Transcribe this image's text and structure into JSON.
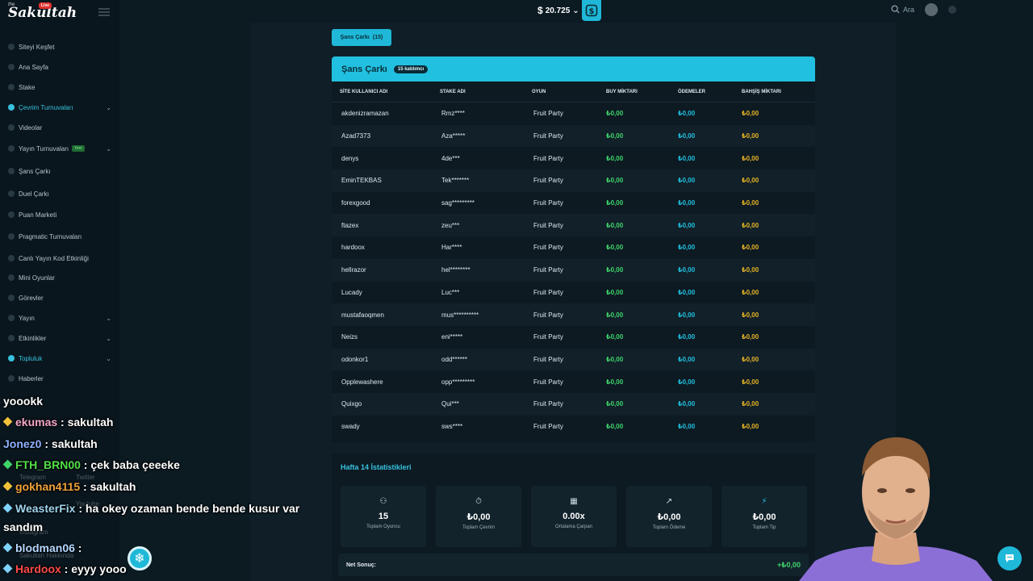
{
  "brand": {
    "pre": "the",
    "name": "Sakultah",
    "badge": "Live"
  },
  "sidebar": {
    "items": [
      {
        "label": "Siteyi Keşfet"
      },
      {
        "label": "Ana Sayfa"
      },
      {
        "label": "Stake"
      },
      {
        "label": "Çevrim Turnuvaları",
        "active": true,
        "chevron": "⌄"
      },
      {
        "label": "Videolar"
      },
      {
        "label": "Yayın Turnuvaları",
        "badge": "Yeni",
        "chevron": "⌄"
      },
      {
        "label": "Şans Çarkı"
      },
      {
        "label": "Duel Çarkı"
      },
      {
        "label": "Puan Marketi"
      },
      {
        "label": "Pragmatic Turnuvaları"
      },
      {
        "label": "Canlı Yayın Kod Etkinliği"
      },
      {
        "label": "Mini Oyunlar"
      },
      {
        "label": "Görevler"
      },
      {
        "label": "Yayın",
        "chevron": "⌄"
      },
      {
        "label": "Etkinlikler",
        "chevron": "⌄"
      },
      {
        "label": "Topluluk",
        "active": true,
        "chevron": "⌄"
      },
      {
        "label": "Haberler"
      }
    ],
    "faded": [
      "Telegram",
      "Twitter",
      "Youtube",
      "Instagram",
      "Sakultah Hakkında"
    ]
  },
  "topbar": {
    "currency_symbol": "$",
    "balance": "20.725",
    "balance_chevron": "⌄",
    "wallet_icon": "wallet-icon",
    "search_label": "Ara"
  },
  "tab": {
    "label": "Şans Çarkı",
    "count": "(15)"
  },
  "table": {
    "title": "Şans Çarkı",
    "participants": "15 katılımcı",
    "headers": [
      "SİTE KULLANICI ADI",
      "STAKE ADI",
      "OYUN",
      "BUY MİKTARI",
      "ÖDEMELER",
      "BAHŞİŞ MİKTARI"
    ],
    "rows": [
      [
        "akdenizramazan",
        "Rmz****",
        "Fruit Party",
        "₺0,00",
        "₺0,00",
        "₺0,00"
      ],
      [
        "Azad7373",
        "Aza*****",
        "Fruit Party",
        "₺0,00",
        "₺0,00",
        "₺0,00"
      ],
      [
        "denys",
        "4de***",
        "Fruit Party",
        "₺0,00",
        "₺0,00",
        "₺0,00"
      ],
      [
        "EminTEKBAS",
        "Tek*******",
        "Fruit Party",
        "₺0,00",
        "₺0,00",
        "₺0,00"
      ],
      [
        "forexgood",
        "sag*********",
        "Fruit Party",
        "₺0,00",
        "₺0,00",
        "₺0,00"
      ],
      [
        "ftazex",
        "zeu***",
        "Fruit Party",
        "₺0,00",
        "₺0,00",
        "₺0,00"
      ],
      [
        "hardoox",
        "Har****",
        "Fruit Party",
        "₺0,00",
        "₺0,00",
        "₺0,00"
      ],
      [
        "hellrazor",
        "hel********",
        "Fruit Party",
        "₺0,00",
        "₺0,00",
        "₺0,00"
      ],
      [
        "Lucady",
        "Luc***",
        "Fruit Party",
        "₺0,00",
        "₺0,00",
        "₺0,00"
      ],
      [
        "mustafaoqmen",
        "mus**********",
        "Fruit Party",
        "₺0,00",
        "₺0,00",
        "₺0,00"
      ],
      [
        "Neizs",
        "eni*****",
        "Fruit Party",
        "₺0,00",
        "₺0,00",
        "₺0,00"
      ],
      [
        "odonkor1",
        "odd******",
        "Fruit Party",
        "₺0,00",
        "₺0,00",
        "₺0,00"
      ],
      [
        "Opplewashere",
        "opp*********",
        "Fruit Party",
        "₺0,00",
        "₺0,00",
        "₺0,00"
      ],
      [
        "Quixgo",
        "Qui***",
        "Fruit Party",
        "₺0,00",
        "₺0,00",
        "₺0,00"
      ],
      [
        "swady",
        "sws****",
        "Fruit Party",
        "₺0,00",
        "₺0,00",
        "₺0,00"
      ]
    ]
  },
  "stats": {
    "title": "Hafta 14 İstatistikleri",
    "cards": [
      {
        "icon": "users-icon",
        "glyph": "⚇",
        "value": "15",
        "label": "Toplam Oyuncu"
      },
      {
        "icon": "stopwatch-icon",
        "glyph": "⏱",
        "value": "₺0,00",
        "label": "Toplam Çevrim"
      },
      {
        "icon": "calculator-icon",
        "glyph": "▦",
        "value": "0.00x",
        "label": "Ortalama Çarpan"
      },
      {
        "icon": "chart-icon",
        "glyph": "↗",
        "value": "₺0,00",
        "label": "Toplam Ödeme"
      },
      {
        "icon": "lightning-icon",
        "glyph": "⚡",
        "value": "₺0,00",
        "label": "Toplam Tip"
      }
    ],
    "net_label": "Net Sonuç:",
    "net_value": "+₺0,00"
  },
  "chat": [
    {
      "user": "yoookk",
      "sep": "",
      "msg": "",
      "color": "#ffffff",
      "gem": ""
    },
    {
      "user": "ekumas",
      "sep": " : ",
      "msg": "sakultah",
      "color": "#f4a7c8",
      "gem": "#f3c23a"
    },
    {
      "user": "Jonez0",
      "sep": " : ",
      "msg": "sakultah",
      "color": "#8fb0ff",
      "gem": ""
    },
    {
      "user": "FTH_BRN00",
      "sep": " : ",
      "msg": "çek baba çeeeke",
      "color": "#54e04a",
      "gem": "#3fd56b"
    },
    {
      "user": "gokhan4115",
      "sep": " : ",
      "msg": "sakultah",
      "color": "#f0a23a",
      "gem": "#f3c23a"
    },
    {
      "user": "WeasterFix",
      "sep": " : ",
      "msg": "ha okey ozaman bende bende kusur var",
      "color": "#9fd4ee",
      "gem": "#7fd3ff"
    },
    {
      "user": "sandım",
      "sep": "",
      "msg": "",
      "color": "#ffffff",
      "gem": ""
    },
    {
      "user": "blodman06",
      "sep": " : ",
      "msg": "",
      "color": "#b5d8ff",
      "gem": "#7fd3ff"
    },
    {
      "user": "Hardoox",
      "sep": " : ",
      "msg": "eyyy yooo",
      "color": "#ff4a4a",
      "gem": "#7fd3ff"
    }
  ],
  "widgets": {
    "snow_icon": "❄",
    "support_icon": "💬"
  }
}
